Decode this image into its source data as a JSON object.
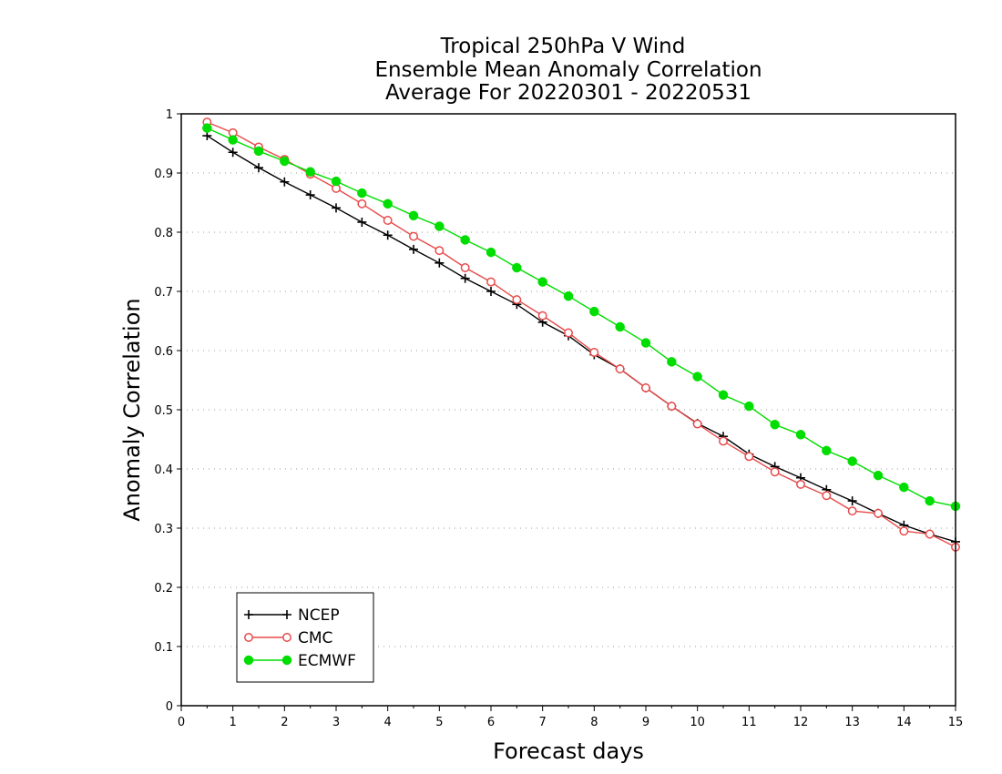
{
  "chart_data": {
    "type": "line",
    "title": [
      "Tropical 250hPa V Wind",
      "Ensemble Mean Anomaly Correlation",
      "Average For 20220301 - 20220531"
    ],
    "xlabel": "Forecast days",
    "ylabel": "Anomaly Correlation",
    "xlim": [
      0,
      15
    ],
    "ylim": [
      0,
      1
    ],
    "xticks": [
      "0",
      "1",
      "2",
      "3",
      "4",
      "5",
      "6",
      "7",
      "8",
      "9",
      "10",
      "11",
      "12",
      "13",
      "14",
      "15"
    ],
    "yticks": [
      "0",
      "0.1",
      "0.2",
      "0.3",
      "0.4",
      "0.5",
      "0.6",
      "0.7",
      "0.8",
      "0.9",
      "1"
    ],
    "grid": "horizontal dotted",
    "legend_position": "bottom-left",
    "x": [
      0.5,
      1,
      1.5,
      2,
      2.5,
      3,
      3.5,
      4,
      4.5,
      5,
      5.5,
      6,
      6.5,
      7,
      7.5,
      8,
      8.5,
      9,
      9.5,
      10,
      10.5,
      11,
      11.5,
      12,
      12.5,
      13,
      13.5,
      14,
      14.5,
      15
    ],
    "series": [
      {
        "name": "NCEP",
        "color": "#000000",
        "marker": "plus",
        "values": [
          0.963,
          0.935,
          0.909,
          0.885,
          0.863,
          0.841,
          0.817,
          0.795,
          0.771,
          0.748,
          0.722,
          0.7,
          0.678,
          0.648,
          0.625,
          0.593,
          0.569,
          0.537,
          0.506,
          0.477,
          0.455,
          0.425,
          0.404,
          0.385,
          0.365,
          0.346,
          0.325,
          0.305,
          0.29,
          0.277
        ]
      },
      {
        "name": "CMC",
        "color": "#e84a4a",
        "marker": "open-circle",
        "values": [
          0.986,
          0.968,
          0.944,
          0.923,
          0.898,
          0.874,
          0.848,
          0.82,
          0.793,
          0.769,
          0.74,
          0.716,
          0.686,
          0.659,
          0.63,
          0.597,
          0.569,
          0.537,
          0.506,
          0.476,
          0.447,
          0.421,
          0.395,
          0.374,
          0.355,
          0.329,
          0.325,
          0.295,
          0.29,
          0.268
        ]
      },
      {
        "name": "ECMWF",
        "color": "#00dd00",
        "marker": "filled-circle",
        "values": [
          0.976,
          0.956,
          0.937,
          0.92,
          0.902,
          0.886,
          0.866,
          0.848,
          0.828,
          0.81,
          0.787,
          0.766,
          0.74,
          0.716,
          0.692,
          0.666,
          0.64,
          0.613,
          0.581,
          0.556,
          0.525,
          0.506,
          0.475,
          0.458,
          0.431,
          0.413,
          0.389,
          0.369,
          0.346,
          0.337
        ]
      }
    ]
  }
}
